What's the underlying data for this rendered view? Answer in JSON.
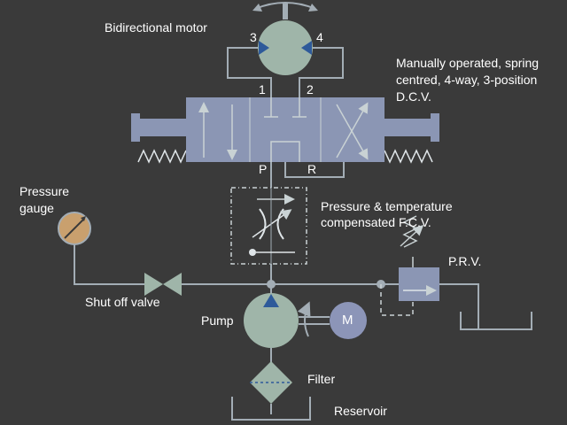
{
  "labels": {
    "motor": "Bidirectional motor",
    "dcv_line1": "Manually operated, spring",
    "dcv_line2": "centred, 4-way, 3-position",
    "dcv_line3": "D.C.V.",
    "fcv_line1": "Pressure & temperature",
    "fcv_line2": "compensated F.C.V.",
    "gauge_line1": "Pressure",
    "gauge_line2": "gauge",
    "shutoff": "Shut off valve",
    "pump": "Pump",
    "prv": "P.R.V.",
    "filter": "Filter",
    "reservoir": "Reservoir",
    "electric_motor": "M"
  },
  "ports": {
    "motor_left": "3",
    "motor_right": "4",
    "dcv_a": "1",
    "dcv_b": "2",
    "dcv_p": "P",
    "dcv_r": "R"
  },
  "colors": {
    "background": "#3a3a3a",
    "line": "#a3adb5",
    "component_fill": "#9fb5a9",
    "valve_fill": "#8b96b4",
    "motor_m_fill": "#8c95b8",
    "gauge_fill": "#c9a06e",
    "dcv_arrow": "#c9d2d4",
    "motor_triangle": "#2e5a9a"
  }
}
